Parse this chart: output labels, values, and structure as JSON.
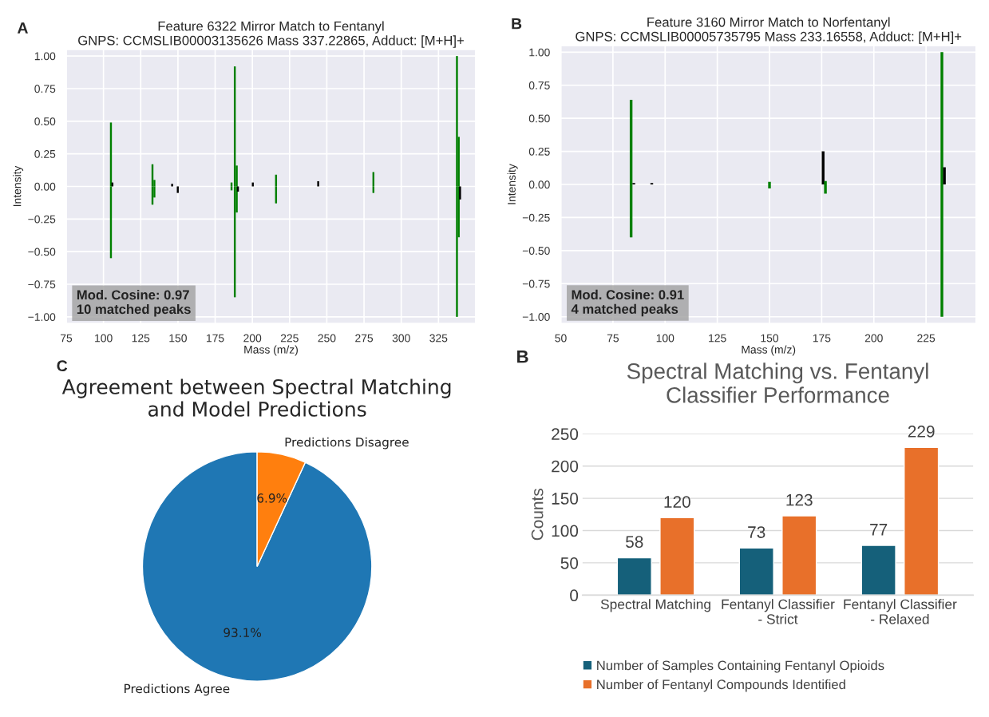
{
  "chart_data": [
    {
      "type": "bar",
      "title": "Feature 6322 Mirror Match to Fentanyl\nGNPS: CCMSLIB00003135626 Mass 337.22865, Adduct: [M+H]+",
      "xlabel": "Mass (m/z)",
      "ylabel": "Intensity",
      "annotations": [
        "A",
        "Mod. Cosine: 0.97\n10 matched peaks"
      ],
      "series": [
        {
          "x": [
            105.0,
            106.0,
            132.9,
            134.2,
            146.1,
            186.0,
            188.2,
            189.5,
            200.3,
            215.9,
            244.2,
            281.3,
            337.4,
            338.6
          ],
          "values": [
            0.49,
            0.03,
            0.17,
            0.05,
            0.02,
            0.03,
            0.92,
            0.16,
            0.03,
            0.09,
            0.04,
            0.11,
            1.0,
            0.38
          ],
          "colors": [
            "#008000",
            "#000000",
            "#008000",
            "#008000",
            "#000000",
            "#008000",
            "#008000",
            "#008000",
            "#000000",
            "#008000",
            "#000000",
            "#008000",
            "#008000",
            "#008000"
          ]
        },
        {
          "x": [
            105.0,
            132.9,
            134.2,
            149.9,
            186.0,
            188.2,
            189.5,
            190.3,
            215.9,
            281.3,
            337.4,
            338.6,
            339.5
          ],
          "values": [
            -0.55,
            -0.14,
            -0.085,
            -0.05,
            -0.03,
            -0.85,
            -0.2,
            -0.04,
            -0.13,
            -0.05,
            -1.0,
            -0.39,
            -0.1
          ],
          "colors": [
            "#008000",
            "#008000",
            "#008000",
            "#000000",
            "#008000",
            "#008000",
            "#008000",
            "#000000",
            "#008000",
            "#008000",
            "#008000",
            "#008000",
            "#000000"
          ]
        }
      ],
      "xlim": [
        75,
        350
      ],
      "xticks": [
        75,
        100,
        125,
        150,
        175,
        200,
        225,
        250,
        275,
        300,
        325
      ],
      "ylim": [
        -1.05,
        1.05
      ],
      "yticks": [
        {
          "value": -1,
          "label": "−1.00"
        },
        {
          "value": -0.75,
          "label": "−0.75"
        },
        {
          "value": -0.5,
          "label": "−0.50"
        },
        {
          "value": -0.25,
          "label": "−0.25"
        },
        {
          "value": 0,
          "label": "0.00"
        },
        {
          "value": 0.25,
          "label": "0.25"
        },
        {
          "value": 0.5,
          "label": "0.50"
        },
        {
          "value": 0.75,
          "label": "0.75"
        },
        {
          "value": 1,
          "label": "1.00"
        }
      ],
      "grid": true
    },
    {
      "type": "bar",
      "title": "Feature 3160 Mirror Match to Norfentanyl\nGNPS: CCMSLIB00005735795 Mass 233.16558, Adduct: [M+H]+",
      "xlabel": "Mass (m/z)",
      "ylabel": "Intensity",
      "annotations": [
        "B",
        "Mod. Cosine: 0.91\n4 matched peaks"
      ],
      "series": [
        {
          "x": [
            83.7,
            85.0,
            93.6,
            150.0,
            175.7,
            176.8,
            232.6,
            233.8
          ],
          "values": [
            0.64,
            0.01,
            0.01,
            0.02,
            0.25,
            0.026,
            1.0,
            0.13
          ],
          "colors": [
            "#008000",
            "#000000",
            "#000000",
            "#008000",
            "#000000",
            "#008000",
            "#008000",
            "#000000"
          ]
        },
        {
          "x": [
            83.7,
            150.0,
            176.8,
            232.6
          ],
          "values": [
            -0.4,
            -0.03,
            -0.07,
            -1.0
          ],
          "colors": [
            "#008000",
            "#008000",
            "#008000",
            "#008000"
          ]
        }
      ],
      "xlim": [
        50,
        249
      ],
      "xticks": [
        50,
        75,
        100,
        125,
        150,
        175,
        200,
        225
      ],
      "ylim": [
        -1.05,
        1.05
      ],
      "yticks": [
        {
          "value": -1,
          "label": "−1.00"
        },
        {
          "value": -0.75,
          "label": "−0.75"
        },
        {
          "value": -0.5,
          "label": "−0.50"
        },
        {
          "value": -0.25,
          "label": "−0.25"
        },
        {
          "value": 0,
          "label": "0.00"
        },
        {
          "value": 0.25,
          "label": "0.25"
        },
        {
          "value": 0.5,
          "label": "0.50"
        },
        {
          "value": 0.75,
          "label": "0.75"
        },
        {
          "value": 1,
          "label": "1.00"
        }
      ],
      "grid": true
    },
    {
      "type": "pie",
      "title": "Agreement between Spectral Matching\nand Model Predictions",
      "annotations": [
        "C"
      ],
      "categories": [
        "Predictions Agree",
        "Predictions Disagree"
      ],
      "values": [
        93.1,
        6.9
      ],
      "colors": [
        "#1f77b4",
        "#ff7f0e"
      ],
      "value_labels": [
        "93.1%",
        "6.9%"
      ]
    },
    {
      "type": "bar",
      "title": "Spectral Matching vs. Fentanyl\nClassifier Performance",
      "ylabel": "Counts",
      "annotations": [
        "B"
      ],
      "categories": [
        "Spectral Matching",
        "Fentanyl Classifier\n- Strict",
        "Fentanyl Classifier\n- Relaxed"
      ],
      "series": [
        {
          "name": "Number of Samples Containing Fentanyl Opioids",
          "color": "#15607a",
          "values": [
            58,
            73,
            77
          ]
        },
        {
          "name": "Number of Fentanyl Compounds Identified",
          "color": "#e8702a",
          "values": [
            120,
            123,
            229
          ]
        }
      ],
      "ylim": [
        0,
        250
      ],
      "yticks": [
        0,
        50,
        100,
        150,
        200,
        250
      ],
      "grid": "y",
      "legend": "bottom",
      "data_labels": true
    }
  ]
}
